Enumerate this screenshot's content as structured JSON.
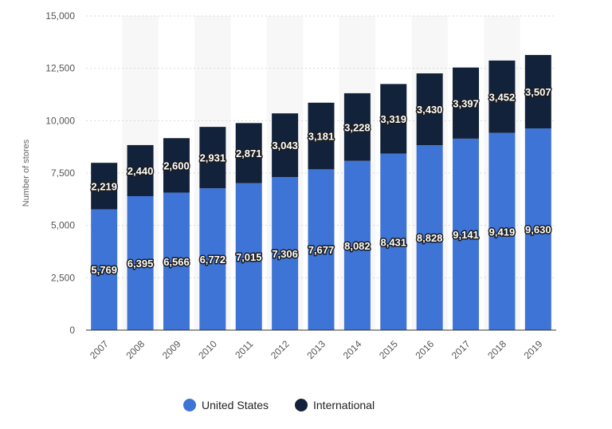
{
  "chart_data": {
    "type": "bar",
    "stacked": true,
    "categories": [
      "2007",
      "2008",
      "2009",
      "2010",
      "2011",
      "2012",
      "2013",
      "2014",
      "2015",
      "2016",
      "2017",
      "2018",
      "2019"
    ],
    "series": [
      {
        "name": "United States",
        "color": "#3e74d6",
        "values": [
          5769,
          6395,
          6566,
          6772,
          7015,
          7306,
          7677,
          8082,
          8431,
          8828,
          9141,
          9419,
          9630
        ],
        "labels": [
          "5,769",
          "6,395",
          "6,566",
          "6,772",
          "7,015",
          "7,306",
          "7,677",
          "8,082",
          "8,431",
          "8,828",
          "9,141",
          "9,419",
          "9,630"
        ]
      },
      {
        "name": "International",
        "color": "#13223b",
        "values": [
          2219,
          2440,
          2600,
          2931,
          2871,
          3043,
          3181,
          3228,
          3319,
          3430,
          3397,
          3452,
          3507
        ],
        "labels": [
          "2,219",
          "2,440",
          "2,600",
          "2,931",
          "2,871",
          "3,043",
          "3,181",
          "3,228",
          "3,319",
          "3,430",
          "3,397",
          "3,452",
          "3,507"
        ]
      }
    ],
    "title": "",
    "xlabel": "",
    "ylabel": "Number of stores",
    "ylim": [
      0,
      15000
    ],
    "yticks": [
      0,
      2500,
      5000,
      7500,
      10000,
      12500,
      15000
    ],
    "ytick_labels": [
      "0",
      "2,500",
      "5,000",
      "7,500",
      "10,000",
      "12,500",
      "15,000"
    ],
    "grid": true,
    "legend_position": "bottom"
  }
}
